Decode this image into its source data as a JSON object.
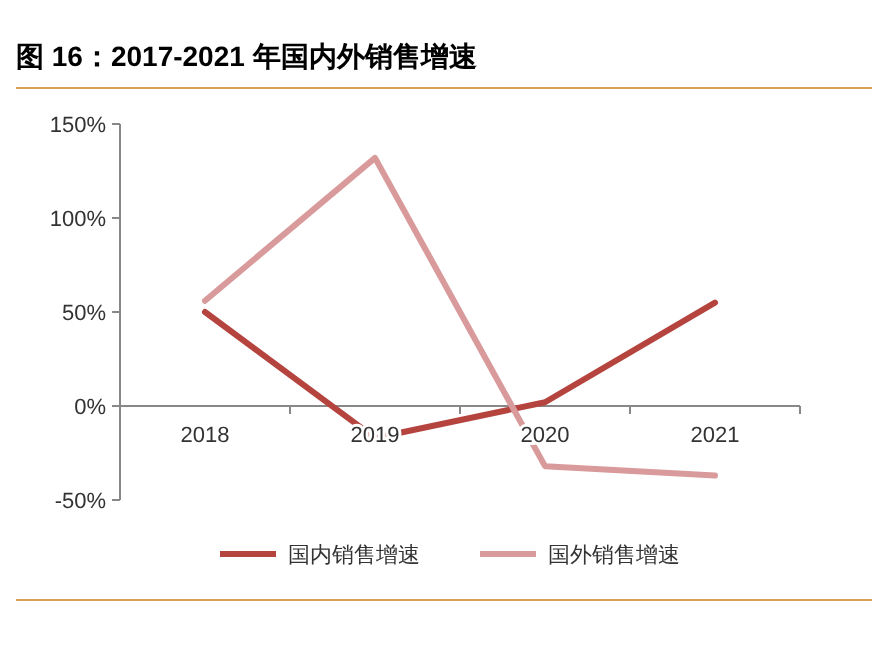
{
  "chart_data": {
    "type": "line",
    "title": "图 16：2017-2021 年国内外销售增速",
    "categories": [
      "2018",
      "2019",
      "2020",
      "2021"
    ],
    "series": [
      {
        "name": "国内销售增速",
        "color": "#b5443f",
        "values": [
          50,
          -17,
          2,
          55
        ]
      },
      {
        "name": "国外销售增速",
        "color": "#d99a9b",
        "values": [
          56,
          132,
          -32,
          -37
        ]
      }
    ],
    "ylim": [
      -50,
      150
    ],
    "yticks": [
      {
        "value": -50,
        "label": "-50%"
      },
      {
        "value": 0,
        "label": "0%"
      },
      {
        "value": 50,
        "label": "50%"
      },
      {
        "value": 100,
        "label": "100%"
      },
      {
        "value": 150,
        "label": "150%"
      }
    ],
    "legend": "bottom",
    "marker": "none",
    "line_style": "solid"
  }
}
